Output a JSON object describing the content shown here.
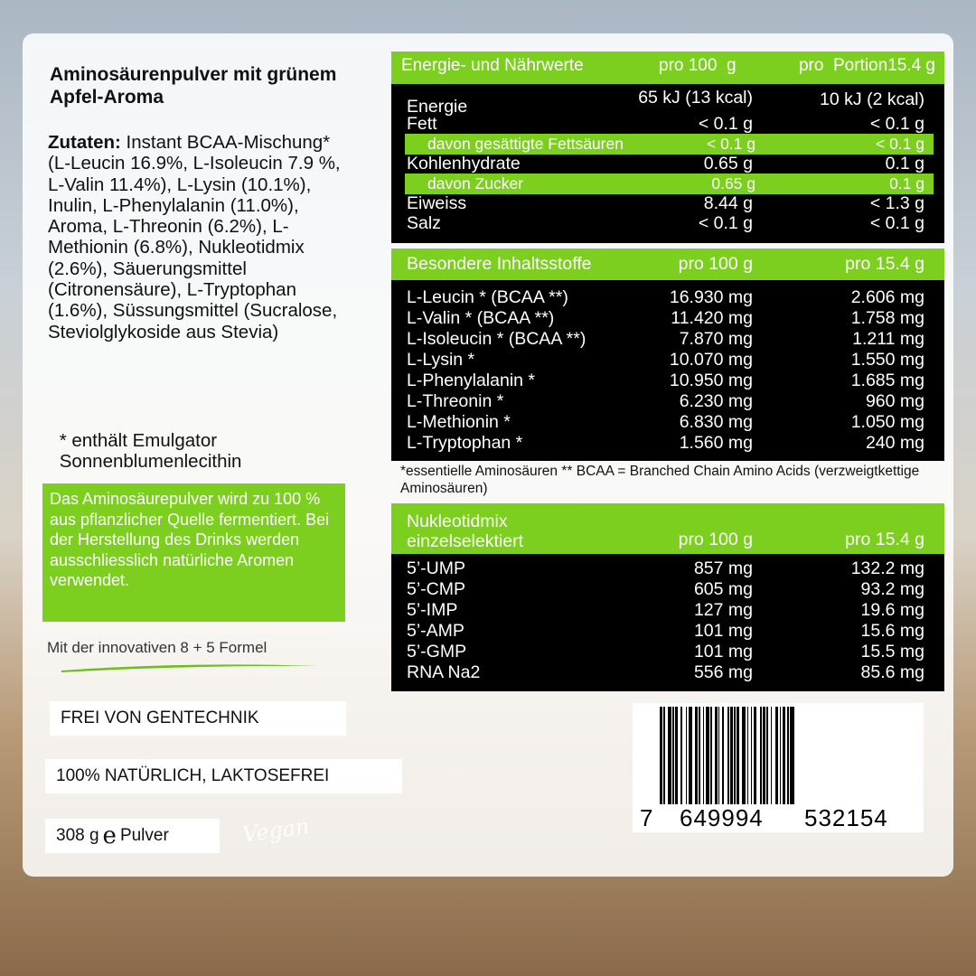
{
  "title": "Aminosäurenpulver mit grünem Apfel-Aroma",
  "ingredients": {
    "label": "Zutaten:",
    "text": " Instant BCAA-Mischung* (L-Leucin 16.9%, L-Isoleucin 7.9 %, L-Valin 11.4%), L-Lysin (10.1%), Inulin, L-Phenylalanin (11.0%), Aroma, L-Threonin (6.2%), L-Methionin (6.8%), Nukleotidmix (2.6%), Säuerungsmittel (Citronensäure), L-Tryptophan (1.6%), Süssungsmittel (Sucralose, Steviolglykoside aus Stevia)",
    "note": " * enthält Emulgator\n Sonnenblumenlecithin"
  },
  "info_box": "Das Aminosäurepulver wird zu 100 % aus pflanzlicher Quelle fermentiert. Bei der Herstellung des Drinks werden ausschliesslich natürliche Aromen verwendet.",
  "formula": "Mit der innovativen 8 + 5 Formel",
  "badges": [
    "FREI VON GENTECHNIK",
    "100% NATÜRLICH, LAKTOSEFREI"
  ],
  "weight": {
    "amount": "308 g",
    "symbol": "e",
    "unit": "Pulver"
  },
  "vegan_logo": "Vegan",
  "colors": {
    "accent": "#7ccf1f",
    "table_bg": "#000000"
  },
  "nutrition": {
    "header": [
      "Energie- und Nährwerte",
      "pro 100  g",
      "pro  Portion15.4 g"
    ],
    "rows": [
      [
        "Energie",
        "65 kJ (13 kcal)",
        "10 kJ (2 kcal)"
      ],
      [
        "Fett",
        "< 0.1 g",
        "< 0.1 g"
      ],
      [
        "davon gesättigte Fettsäuren",
        "< 0.1 g",
        "< 0.1 g"
      ],
      [
        "Kohlenhydrate",
        "0.65 g",
        "0.1 g"
      ],
      [
        "davon Zucker",
        "0.65 g",
        "0.1 g"
      ],
      [
        "Eiweiss",
        "8.44 g",
        "< 1.3 g"
      ],
      [
        "Salz",
        "< 0.1 g",
        "< 0.1 g"
      ]
    ]
  },
  "amino": {
    "header": [
      "Besondere Inhaltsstoffe",
      "pro 100 g",
      "pro 15.4 g"
    ],
    "rows": [
      [
        "L-Leucin * (BCAA **)",
        "16.930 mg",
        "2.606 mg"
      ],
      [
        "L-Valin * (BCAA **)",
        "11.420 mg",
        "1.758 mg"
      ],
      [
        "L-Isoleucin * (BCAA **)",
        "7.870 mg",
        "1.211 mg"
      ],
      [
        "L-Lysin *",
        "10.070 mg",
        "1.550 mg"
      ],
      [
        "L-Phenylalanin *",
        "10.950 mg",
        "1.685 mg"
      ],
      [
        "L-Threonin *",
        "6.230 mg",
        "960 mg"
      ],
      [
        "L-Methionin *",
        "6.830 mg",
        "1.050 mg"
      ],
      [
        "L-Tryptophan *",
        "1.560 mg",
        "240 mg"
      ]
    ],
    "footnote": "*essentielle Aminosäuren ** BCAA = Branched Chain Amino Acids (verzweigtkettige Aminosäuren)"
  },
  "nucleotide": {
    "header": [
      "Nukleotidmix",
      "einzelselektiert",
      "pro 100 g",
      "pro 15.4 g"
    ],
    "rows": [
      [
        "5’-UMP",
        "857 mg",
        "132.2 mg"
      ],
      [
        "5’-CMP",
        "605 mg",
        "93.2 mg"
      ],
      [
        "5’-IMP",
        "127 mg",
        "19.6 mg"
      ],
      [
        "5’-AMP",
        "101 mg",
        "15.6 mg"
      ],
      [
        "5’-GMP",
        "101 mg",
        "15.5 mg"
      ],
      [
        "RNA Na2",
        "556 mg",
        "85.6 mg"
      ]
    ]
  },
  "barcode": {
    "digits": [
      "7",
      "649994",
      "532154"
    ]
  }
}
